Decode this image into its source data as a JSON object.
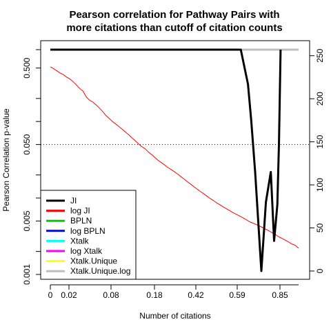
{
  "chart_data": {
    "type": "line",
    "title_lines": [
      "Pearson correlation for Pathway Pairs with",
      "more citations than cutoff of citation counts"
    ],
    "xlabel": "Number of citations",
    "ylabel": "Pearson Correlation p-value",
    "x_ticks": [
      "0",
      "0.02",
      "0.08",
      "0.18",
      "0.42",
      "0.59",
      "0.85"
    ],
    "y_left_ticks": [
      {
        "value": 0.5,
        "label": "0.500"
      },
      {
        "value": 0.05,
        "label": "0.050"
      },
      {
        "value": 0.005,
        "label": "0.005"
      },
      {
        "value": 0.001,
        "label": "0.001"
      }
    ],
    "y_left_scale": "log",
    "y_left_lim": [
      0.001,
      0.87
    ],
    "y_right_ticks": [
      0,
      50,
      100,
      150,
      200,
      250
    ],
    "y_right_lim": [
      0,
      257
    ],
    "reference_line": {
      "axis": "left",
      "value": 0.05,
      "style": "dotted"
    },
    "series": [
      {
        "name": "JI",
        "color": "#000000",
        "axis": "right",
        "x": [
          0,
          13,
          27,
          35,
          41,
          50,
          56,
          57,
          58.3,
          60.5,
          61.5,
          62.7,
          64.6,
          66,
          67.5,
          68.5,
          69.5,
          70,
          70.5
        ],
        "values": [
          257,
          257,
          257,
          257,
          257,
          257,
          257,
          257,
          257,
          217,
          175,
          115,
          0,
          80,
          115,
          35,
          77,
          150,
          257
        ]
      },
      {
        "name": "log JI",
        "color": "#ff0000",
        "axis": "left",
        "x": [
          0,
          1,
          2,
          3,
          4,
          5,
          6,
          7,
          8,
          9,
          10,
          11,
          12,
          13,
          14,
          15,
          16,
          17,
          18,
          19,
          20,
          21,
          22,
          23,
          24,
          25,
          26,
          27,
          28,
          29,
          30,
          31,
          32,
          33,
          34,
          35,
          36,
          37,
          38,
          39,
          40,
          41,
          42,
          43,
          44,
          45,
          46,
          47,
          48,
          49,
          50,
          51,
          52,
          53,
          54,
          55,
          56,
          57,
          58,
          59,
          60,
          61,
          62,
          63,
          64,
          65,
          66,
          67,
          68,
          69,
          70,
          71,
          72,
          73,
          74,
          75,
          76
        ],
        "values": [
          0.52,
          0.49,
          0.46,
          0.43,
          0.41,
          0.38,
          0.36,
          0.33,
          0.3,
          0.27,
          0.25,
          0.21,
          0.19,
          0.18,
          0.165,
          0.15,
          0.135,
          0.12,
          0.11,
          0.1,
          0.093,
          0.086,
          0.079,
          0.073,
          0.067,
          0.061,
          0.056,
          0.051,
          0.047,
          0.044,
          0.04,
          0.037,
          0.034,
          0.031,
          0.029,
          0.027,
          0.025,
          0.0235,
          0.022,
          0.0205,
          0.019,
          0.0176,
          0.0163,
          0.0151,
          0.014,
          0.013,
          0.0121,
          0.0113,
          0.0105,
          0.0098,
          0.0092,
          0.0086,
          0.0081,
          0.0076,
          0.0072,
          0.0068,
          0.0064,
          0.0061,
          0.0058,
          0.0055,
          0.0052,
          0.0049,
          0.0047,
          0.0045,
          0.0043,
          0.0041,
          0.0039,
          0.0037,
          0.0035,
          0.0033,
          0.0031,
          0.00295,
          0.0028,
          0.00265,
          0.0025,
          0.0024,
          0.0022
        ]
      },
      {
        "name": "BPLN",
        "color": "#00cd00",
        "axis": "right",
        "x": [
          0,
          76
        ],
        "values": [
          257,
          257
        ]
      },
      {
        "name": "log BPLN",
        "color": "#0000ff",
        "axis": "right",
        "x": [
          0,
          76
        ],
        "values": [
          257,
          257
        ]
      },
      {
        "name": "Xtalk",
        "color": "#00ffff",
        "axis": "right",
        "x": [
          0,
          76
        ],
        "values": [
          257,
          257
        ]
      },
      {
        "name": "log Xtalk",
        "color": "#ff00ff",
        "axis": "right",
        "x": [
          0,
          76
        ],
        "values": [
          257,
          257
        ]
      },
      {
        "name": "Xtalk.Unique",
        "color": "#ffff00",
        "axis": "right",
        "x": [
          0,
          76
        ],
        "values": [
          257,
          257
        ]
      },
      {
        "name": "Xtalk.Unique.log",
        "color": "#bebebe",
        "axis": "right",
        "x": [
          0,
          76
        ],
        "values": [
          257,
          257
        ]
      }
    ],
    "legend_placement": "bottom-left",
    "grid": false
  }
}
